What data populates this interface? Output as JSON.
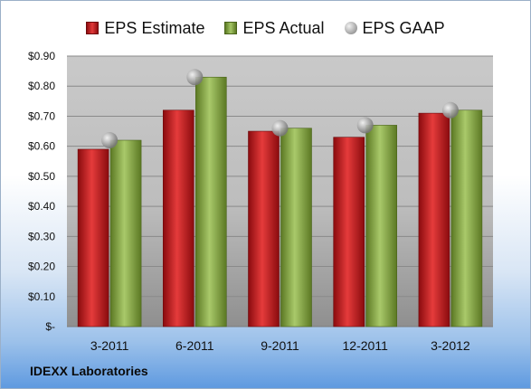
{
  "legend": {
    "estimate_label": "EPS Estimate",
    "actual_label": "EPS Actual",
    "gaap_label": "EPS GAAP"
  },
  "caption": "IDEXX Laboratories",
  "colors": {
    "estimate": "#c0181b",
    "actual": "#86a943",
    "gaap": "#b5b5b5"
  },
  "chart_data": {
    "type": "bar",
    "categories": [
      "3-2011",
      "6-2011",
      "9-2011",
      "12-2011",
      "3-2012"
    ],
    "series": [
      {
        "name": "EPS Estimate",
        "values": [
          0.59,
          0.72,
          0.65,
          0.63,
          0.71
        ]
      },
      {
        "name": "EPS Actual",
        "values": [
          0.62,
          0.83,
          0.66,
          0.67,
          0.72
        ]
      },
      {
        "name": "EPS GAAP",
        "values": [
          0.62,
          0.83,
          0.66,
          0.67,
          0.72
        ],
        "marker": "circle"
      }
    ],
    "ylim": [
      0,
      0.9
    ],
    "yticks": [
      0,
      0.1,
      0.2,
      0.3,
      0.4,
      0.5,
      0.6,
      0.7,
      0.8,
      0.9
    ],
    "ytick_labels": [
      "$-",
      "$0.10",
      "$0.20",
      "$0.30",
      "$0.40",
      "$0.50",
      "$0.60",
      "$0.70",
      "$0.80",
      "$0.90"
    ],
    "grid": true,
    "legend_position": "top"
  }
}
